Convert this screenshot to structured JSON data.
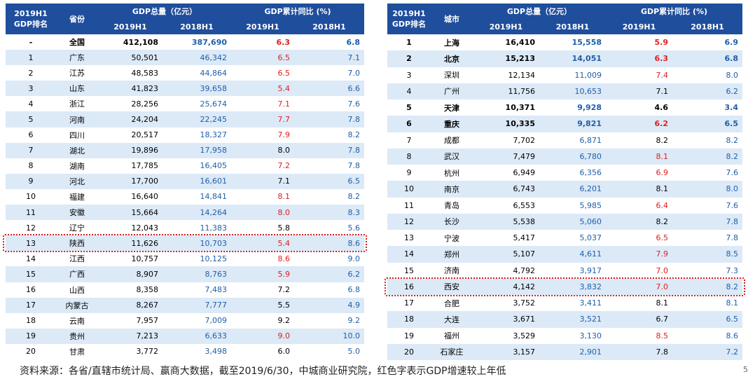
{
  "tables": [
    {
      "header": {
        "rank_lines": [
          "2019H1",
          "GDP排名"
        ],
        "name": "省份",
        "group_gdp": "GDP总量（亿元）",
        "group_growth": "GDP累计同比 (%)",
        "sub": [
          "2019H1",
          "2018H1",
          "2019H1",
          "2018H1"
        ]
      },
      "bold_rows": [
        0
      ],
      "dotted_row": 13,
      "rows": [
        [
          "-",
          "全国",
          "412,108",
          "387,690",
          "6.3",
          "6.8"
        ],
        [
          "1",
          "广东",
          "50,501",
          "46,342",
          "6.5",
          "7.1"
        ],
        [
          "2",
          "江苏",
          "48,583",
          "44,864",
          "6.5",
          "7.0"
        ],
        [
          "3",
          "山东",
          "41,823",
          "39,658",
          "5.4",
          "6.6"
        ],
        [
          "4",
          "浙江",
          "28,256",
          "25,674",
          "7.1",
          "7.6"
        ],
        [
          "5",
          "河南",
          "24,204",
          "22,245",
          "7.7",
          "7.8"
        ],
        [
          "6",
          "四川",
          "20,517",
          "18,327",
          "7.9",
          "8.2"
        ],
        [
          "7",
          "湖北",
          "19,896",
          "17,958",
          "8.0",
          "7.8"
        ],
        [
          "8",
          "湖南",
          "17,785",
          "16,405",
          "7.2",
          "7.8"
        ],
        [
          "9",
          "河北",
          "17,700",
          "16,601",
          "7.1",
          "6.5"
        ],
        [
          "10",
          "福建",
          "16,640",
          "14,841",
          "8.1",
          "8.2"
        ],
        [
          "11",
          "安徽",
          "15,664",
          "14,264",
          "8.0",
          "8.3"
        ],
        [
          "12",
          "辽宁",
          "12,043",
          "11,383",
          "5.8",
          "5.6"
        ],
        [
          "13",
          "陕西",
          "11,626",
          "10,703",
          "5.4",
          "8.6"
        ],
        [
          "14",
          "江西",
          "10,757",
          "10,125",
          "8.6",
          "9.0"
        ],
        [
          "15",
          "广西",
          "8,907",
          "8,763",
          "5.9",
          "6.2"
        ],
        [
          "16",
          "山西",
          "8,358",
          "7,483",
          "7.2",
          "6.8"
        ],
        [
          "17",
          "内蒙古",
          "8,267",
          "7,777",
          "5.5",
          "4.9"
        ],
        [
          "18",
          "云南",
          "7,957",
          "7,009",
          "9.2",
          "9.2"
        ],
        [
          "19",
          "贵州",
          "7,213",
          "6,633",
          "9.0",
          "10.0"
        ],
        [
          "20",
          "甘肃",
          "3,772",
          "3,498",
          "6.0",
          "5.0"
        ]
      ]
    },
    {
      "header": {
        "rank_lines": [
          "2019H1",
          "GDP排名"
        ],
        "name": "城市",
        "group_gdp": "GDP总量（亿元）",
        "group_growth": "GDP累计同比 (%)",
        "sub": [
          "2019H1",
          "2018H1",
          "2019H1",
          "2018H1"
        ]
      },
      "bold_rows": [
        0,
        1,
        4,
        5
      ],
      "dotted_row": 15,
      "rows": [
        [
          "1",
          "上海",
          "16,410",
          "15,558",
          "5.9",
          "6.9"
        ],
        [
          "2",
          "北京",
          "15,213",
          "14,051",
          "6.3",
          "6.8"
        ],
        [
          "3",
          "深圳",
          "12,134",
          "11,009",
          "7.4",
          "8.0"
        ],
        [
          "4",
          "广州",
          "11,756",
          "10,653",
          "7.1",
          "6.2"
        ],
        [
          "5",
          "天津",
          "10,371",
          "9,928",
          "4.6",
          "3.4"
        ],
        [
          "6",
          "重庆",
          "10,335",
          "9,821",
          "6.2",
          "6.5"
        ],
        [
          "7",
          "成都",
          "7,702",
          "6,871",
          "8.2",
          "8.2"
        ],
        [
          "8",
          "武汉",
          "7,479",
          "6,780",
          "8.1",
          "8.2"
        ],
        [
          "9",
          "杭州",
          "6,949",
          "6,356",
          "6.9",
          "7.6"
        ],
        [
          "10",
          "南京",
          "6,743",
          "6,201",
          "8.1",
          "8.0"
        ],
        [
          "11",
          "青岛",
          "6,553",
          "5,985",
          "6.4",
          "7.6"
        ],
        [
          "12",
          "长沙",
          "5,538",
          "5,060",
          "8.2",
          "7.8"
        ],
        [
          "13",
          "宁波",
          "5,417",
          "5,037",
          "6.5",
          "7.8"
        ],
        [
          "14",
          "郑州",
          "5,107",
          "4,611",
          "7.9",
          "8.5"
        ],
        [
          "15",
          "济南",
          "4,792",
          "3,917",
          "7.0",
          "7.3"
        ],
        [
          "16",
          "西安",
          "4,142",
          "3,832",
          "7.0",
          "8.2"
        ],
        [
          "17",
          "合肥",
          "3,752",
          "3,411",
          "8.1",
          "8.1"
        ],
        [
          "18",
          "大连",
          "3,671",
          "3,521",
          "6.7",
          "6.5"
        ],
        [
          "19",
          "福州",
          "3,529",
          "3,130",
          "8.5",
          "8.6"
        ],
        [
          "20",
          "石家庄",
          "3,157",
          "2,901",
          "7.8",
          "7.2"
        ]
      ]
    }
  ],
  "footer": "资料来源：各省/直辖市统计局、赢商大数据，截至2019/6/30，中城商业研究院，红色字表示GDP增速较上年低",
  "page_number": "5"
}
